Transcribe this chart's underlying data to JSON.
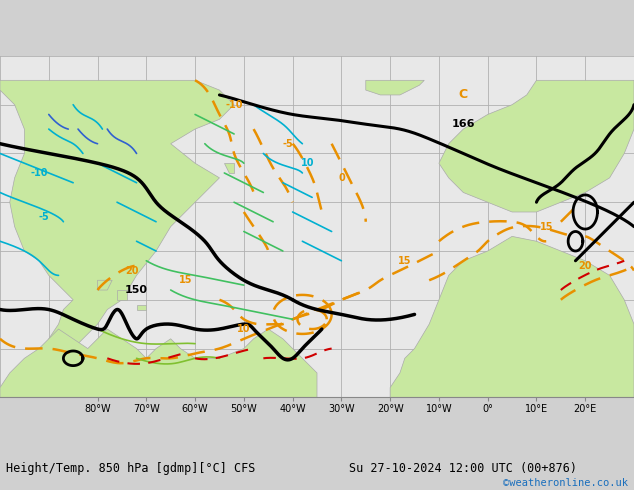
{
  "title_left": "Height/Temp. 850 hPa [gdmp][°C] CFS",
  "title_right": "Su 27-10-2024 12:00 UTC (00+876)",
  "credit": "©weatheronline.co.uk",
  "bg_color": "#d0d0d0",
  "map_bg": "#e8e8e8",
  "land_color": "#c8e8a0",
  "land_edge": "#aaaaaa",
  "grid_color": "#b0b0b0",
  "title_color": "#000000",
  "credit_color": "#1a6fbd",
  "orange": "#e89000",
  "cyan": "#00b0d0",
  "blue": "#3060d0",
  "green": "#40c060",
  "lime": "#80c030",
  "red": "#d00000",
  "black": "#000000",
  "figsize": [
    6.34,
    4.9
  ],
  "dpi": 100
}
